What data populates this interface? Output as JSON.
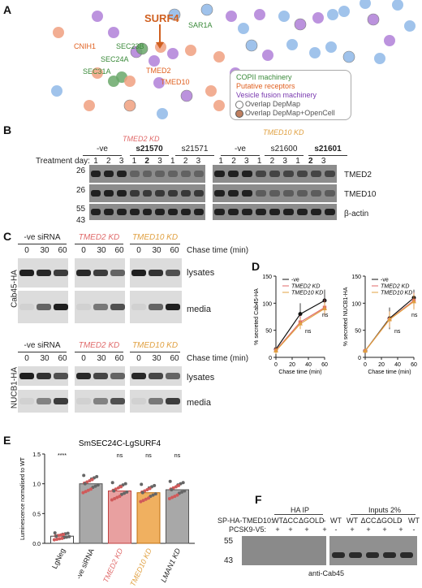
{
  "panel_a": {
    "letter": "A",
    "labels": {
      "surf4": "SURF4",
      "sar1a": "SAR1A",
      "cnih1": "CNIH1",
      "sec23b": "SEC23B",
      "sec24a": "SEC24A",
      "sec31a": "SEC31A",
      "tmed2": "TMED2",
      "tmed10": "TMED10"
    },
    "legend": [
      {
        "label": "COPII machinery",
        "color": "#3a8a3a"
      },
      {
        "label": "Putative receptors",
        "color": "#e06020"
      },
      {
        "label": "Vesicle fusion machinery",
        "color": "#7a3ab0"
      },
      {
        "label": "Overlap DepMap",
        "color": "#ffffff"
      },
      {
        "label": "Overlap DepMap+OpenCell",
        "color": "#c08060"
      }
    ],
    "colors": {
      "blue": "#8fb8e8",
      "orange": "#f0a080",
      "purple": "#b080d8",
      "green": "#6aa86a"
    }
  },
  "panel_b": {
    "letter": "B",
    "tmed2_kd": "TMED2 KD",
    "tmed10_kd": "TMED10 KD",
    "groups": [
      "-ve",
      "s21570",
      "s21571",
      "-ve",
      "s21600",
      "s21601"
    ],
    "treatment_label": "Treatment day:",
    "days": [
      "1",
      "2",
      "3",
      "1",
      "2",
      "3",
      "1",
      "2",
      "3",
      "1",
      "2",
      "3",
      "1",
      "2",
      "3",
      "1",
      "2",
      "3"
    ],
    "mw": [
      "26",
      "26",
      "55",
      "43"
    ],
    "rows": [
      "TMED2",
      "TMED10",
      "β-actin"
    ]
  },
  "panel_c": {
    "letter": "C",
    "top_groups": [
      "-ve siRNA",
      "TMED2 KD",
      "TMED10 KD"
    ],
    "bottom_groups": [
      "-ve siRNA",
      "TMED2 KD",
      "TMED10 KD"
    ],
    "chase_times": [
      "0",
      "30",
      "60",
      "0",
      "30",
      "60",
      "0",
      "30",
      "60"
    ],
    "chase_label": "Chase time (min)",
    "lysates": "lysates",
    "media": "media",
    "cab45": "Cab45-HA",
    "nucb1": "NUCB1-HA"
  },
  "panel_d": {
    "letter": "D",
    "chart_data": [
      {
        "type": "line",
        "ylabel": "% secreted Cab45-HA",
        "xlabel": "Chase time (min)",
        "x": [
          0,
          30,
          60
        ],
        "ylim": [
          0,
          150
        ],
        "yticks": [
          "0",
          "50",
          "100",
          "150"
        ],
        "xticks": [
          "0",
          "20",
          "40",
          "60"
        ],
        "legend": [
          "-ve",
          "TMED2 KD",
          "TMED10 KD"
        ],
        "series": [
          {
            "name": "-ve",
            "values": [
              15,
              80,
              105
            ],
            "err": [
              8,
              20,
              20
            ],
            "color": "#111111"
          },
          {
            "name": "TMED2 KD",
            "values": [
              13,
              65,
              92
            ],
            "err": [
              6,
              12,
              15
            ],
            "color": "#e06a6a"
          },
          {
            "name": "TMED10 KD",
            "values": [
              12,
              62,
              90
            ],
            "err": [
              6,
              10,
              12
            ],
            "color": "#e0a040"
          }
        ],
        "annotations": [
          "ns",
          "ns"
        ]
      },
      {
        "type": "line",
        "ylabel": "% secreted NUCB1-HA",
        "xlabel": "Chase time (min)",
        "x": [
          0,
          30,
          60
        ],
        "ylim": [
          0,
          150
        ],
        "yticks": [
          "0",
          "50",
          "100",
          "150"
        ],
        "xticks": [
          "0",
          "20",
          "40",
          "60"
        ],
        "legend": [
          "-ve",
          "TMED2 KD",
          "TMED10 KD"
        ],
        "series": [
          {
            "name": "-ve",
            "values": [
              12,
              72,
              110
            ],
            "err": [
              4,
              20,
              15
            ],
            "color": "#111111"
          },
          {
            "name": "TMED2 KD",
            "values": [
              12,
              70,
              105
            ],
            "err": [
              4,
              15,
              15
            ],
            "color": "#e06a6a"
          },
          {
            "name": "TMED10 KD",
            "values": [
              12,
              70,
              103
            ],
            "err": [
              4,
              15,
              15
            ],
            "color": "#e0a040"
          }
        ],
        "annotations": [
          "ns",
          "ns"
        ]
      }
    ]
  },
  "panel_e": {
    "letter": "E",
    "chart_data": {
      "type": "bar",
      "title": "SmSEC24C-LgSURF4",
      "ylabel": "Luminescence normalised to WT",
      "categories": [
        "LgNeg",
        "-ve siRNA",
        "TMED2 KD",
        "TMED10 KD",
        "LMAN1 KD"
      ],
      "values": [
        0.12,
        1.0,
        0.88,
        0.85,
        0.9
      ],
      "ylim": [
        0,
        1.5
      ],
      "yticks": [
        "0.0",
        "0.5",
        "1.0",
        "1.5"
      ],
      "significance": [
        "****",
        "",
        "ns",
        "ns",
        "ns"
      ],
      "bar_colors": [
        "#ffffff",
        "#a8a8a8",
        "#e8a0a0",
        "#f0b060",
        "#a8a8a8"
      ]
    }
  },
  "panel_f": {
    "letter": "F",
    "ha_ip": "HA IP",
    "inputs": "Inputs 2%",
    "row1_label": "SP-HA-TMED10:",
    "row2_label": "PCSK9-V5:",
    "row1": [
      "WT",
      "ΔCC",
      "ΔGOLD",
      "-",
      "WT",
      "WT",
      "ΔCC",
      "ΔGOLD",
      "-",
      "WT"
    ],
    "row2": [
      "+",
      "+",
      "+",
      "+",
      "-",
      "+",
      "+",
      "+",
      "+",
      "-"
    ],
    "mw": [
      "55",
      "43"
    ],
    "blot_label": "anti-Cab45"
  }
}
